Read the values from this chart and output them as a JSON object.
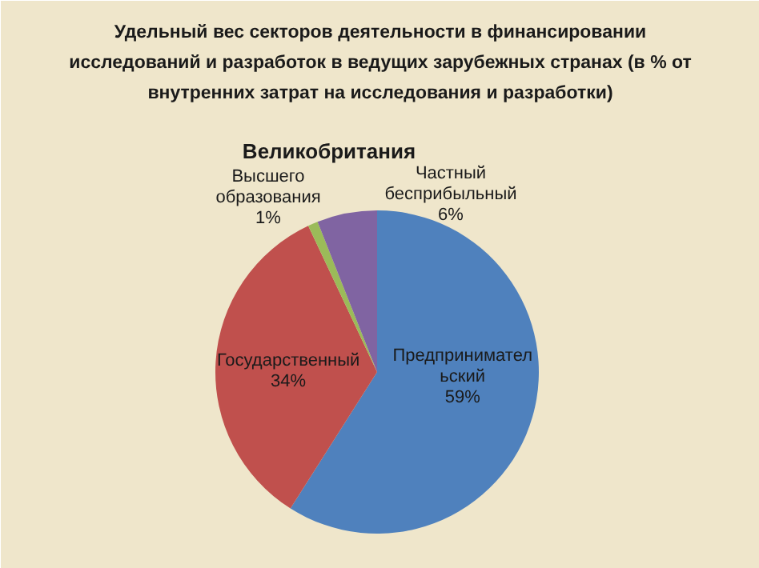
{
  "chart_data": {
    "type": "pie",
    "title": "Удельный вес секторов деятельности в финансировании исследований и разработок в ведущих зарубежных странах (в % от внутренних затрат на исследования и разработки)",
    "subtitle": "Великобритания",
    "categories": [
      "Предпринимательский",
      "Государственный",
      "Высшего образования",
      "Частный бесприбыльный"
    ],
    "values": [
      59,
      34,
      1,
      6
    ],
    "colors": [
      "#4f81bd",
      "#c0504d",
      "#9bbb59",
      "#8064a2"
    ],
    "value_labels": [
      "59%",
      "34%",
      "1%",
      "6%"
    ]
  }
}
